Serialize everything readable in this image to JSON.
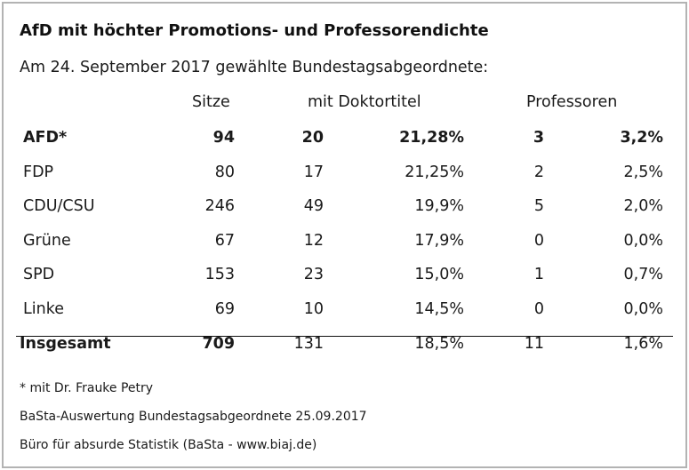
{
  "title": "AfD mit höchter Promotions- und Professorendichte",
  "subtitle": "Am 24. September 2017 gewählte Bundestagsabgeordnete:",
  "columns": {
    "sitze": "Sitze",
    "doktortitel": "mit Doktortitel",
    "professoren": "Professoren"
  },
  "rows": [
    {
      "party": "AFD*",
      "sitze": "94",
      "dr": "20",
      "dr_pct": "21,28%",
      "prof": "3",
      "prof_pct": "3,2%",
      "bold": true
    },
    {
      "party": "FDP",
      "sitze": "80",
      "dr": "17",
      "dr_pct": "21,25%",
      "prof": "2",
      "prof_pct": "2,5%"
    },
    {
      "party": "CDU/CSU",
      "sitze": "246",
      "dr": "49",
      "dr_pct": "19,9%",
      "prof": "5",
      "prof_pct": "2,0%"
    },
    {
      "party": "Grüne",
      "sitze": "67",
      "dr": "12",
      "dr_pct": "17,9%",
      "prof": "0",
      "prof_pct": "0,0%"
    },
    {
      "party": "SPD",
      "sitze": "153",
      "dr": "23",
      "dr_pct": "15,0%",
      "prof": "1",
      "prof_pct": "0,7%"
    },
    {
      "party": "Linke",
      "sitze": "69",
      "dr": "10",
      "dr_pct": "14,5%",
      "prof": "0",
      "prof_pct": "0,0%"
    }
  ],
  "total": {
    "party": "Insgesamt",
    "sitze": "709",
    "dr": "131",
    "dr_pct": "18,5%",
    "prof": "11",
    "prof_pct": "1,6%"
  },
  "notes": {
    "footnote": "* mit Dr. Frauke Petry",
    "source1": "BaSta-Auswertung Bundestagsabgeordnete 25.09.2017",
    "source2": "Büro für absurde Statistik (BaSta - www.biaj.de)"
  }
}
